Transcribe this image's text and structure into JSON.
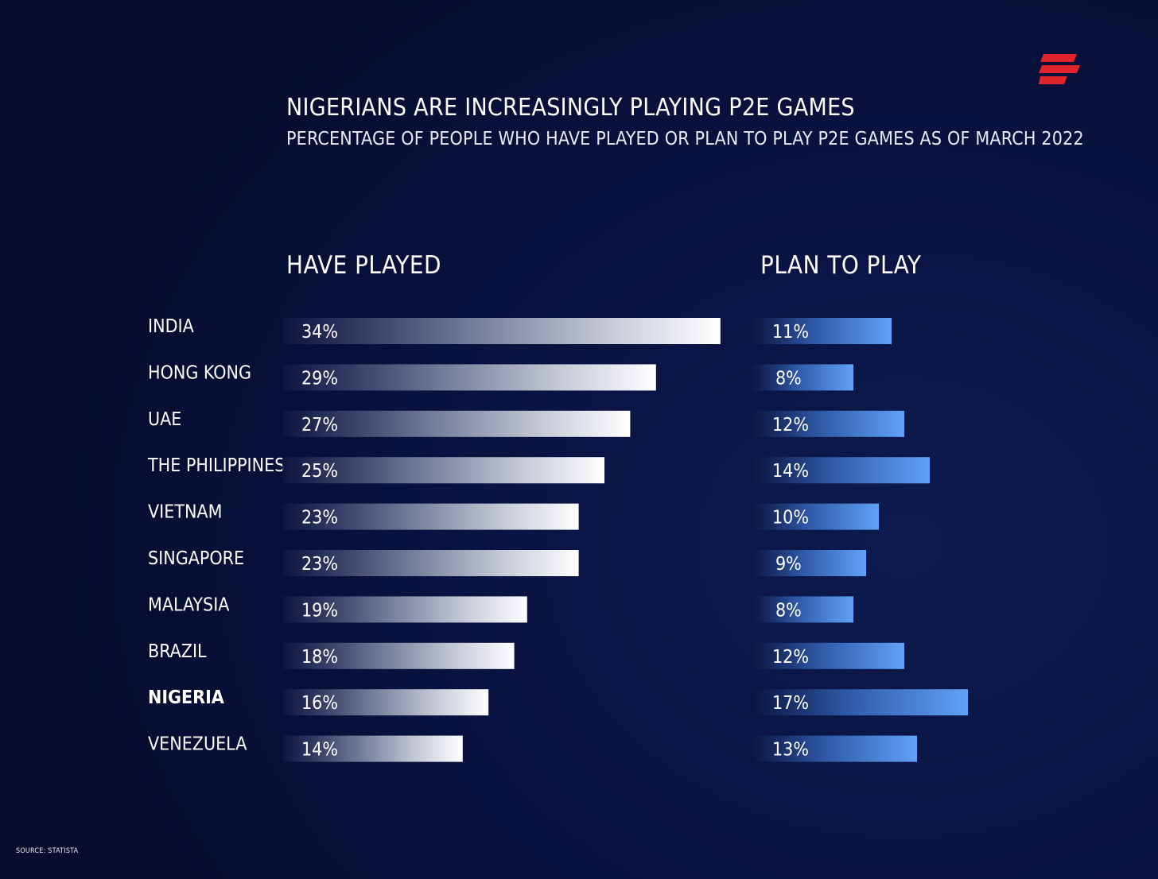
{
  "title": "NIGERIANS ARE INCREASINGLY PLAYING P2E GAMES",
  "subtitle": "PERCENTAGE OF PEOPLE WHO HAVE PLAYED OR PLAN TO PLAY P2E GAMES AS OF MARCH 2022",
  "source": "SOURCE: STATISTA",
  "colors": {
    "background": "#07103a",
    "have_played_bar_end": "#ffffff",
    "plan_to_play_bar_end": "#5b9df5",
    "logo": "#e1232a",
    "text": "#ffffff"
  },
  "chart_data": {
    "type": "bar",
    "orientation": "horizontal",
    "categories": [
      "INDIA",
      "HONG KONG",
      "UAE",
      "THE PHILIPPINES",
      "VIETNAM",
      "SINGAPORE",
      "MALAYSIA",
      "BRAZIL",
      "NIGERIA",
      "VENEZUELA"
    ],
    "highlighted_category": "NIGERIA",
    "series": [
      {
        "name": "HAVE PLAYED",
        "values": [
          34,
          29,
          27,
          25,
          23,
          23,
          19,
          18,
          16,
          14
        ],
        "labels": [
          "34%",
          "29%",
          "27%",
          "25%",
          "23%",
          "23%",
          "19%",
          "18%",
          "16%",
          "14%"
        ]
      },
      {
        "name": "PLAN TO PLAY",
        "values": [
          11,
          8,
          12,
          14,
          10,
          9,
          8,
          12,
          17,
          13
        ],
        "labels": [
          "11%",
          "8%",
          "12%",
          "14%",
          "10%",
          "9%",
          "8%",
          "12%",
          "17%",
          "13%"
        ]
      }
    ],
    "unit": "%",
    "grid": false,
    "legend": "none"
  }
}
